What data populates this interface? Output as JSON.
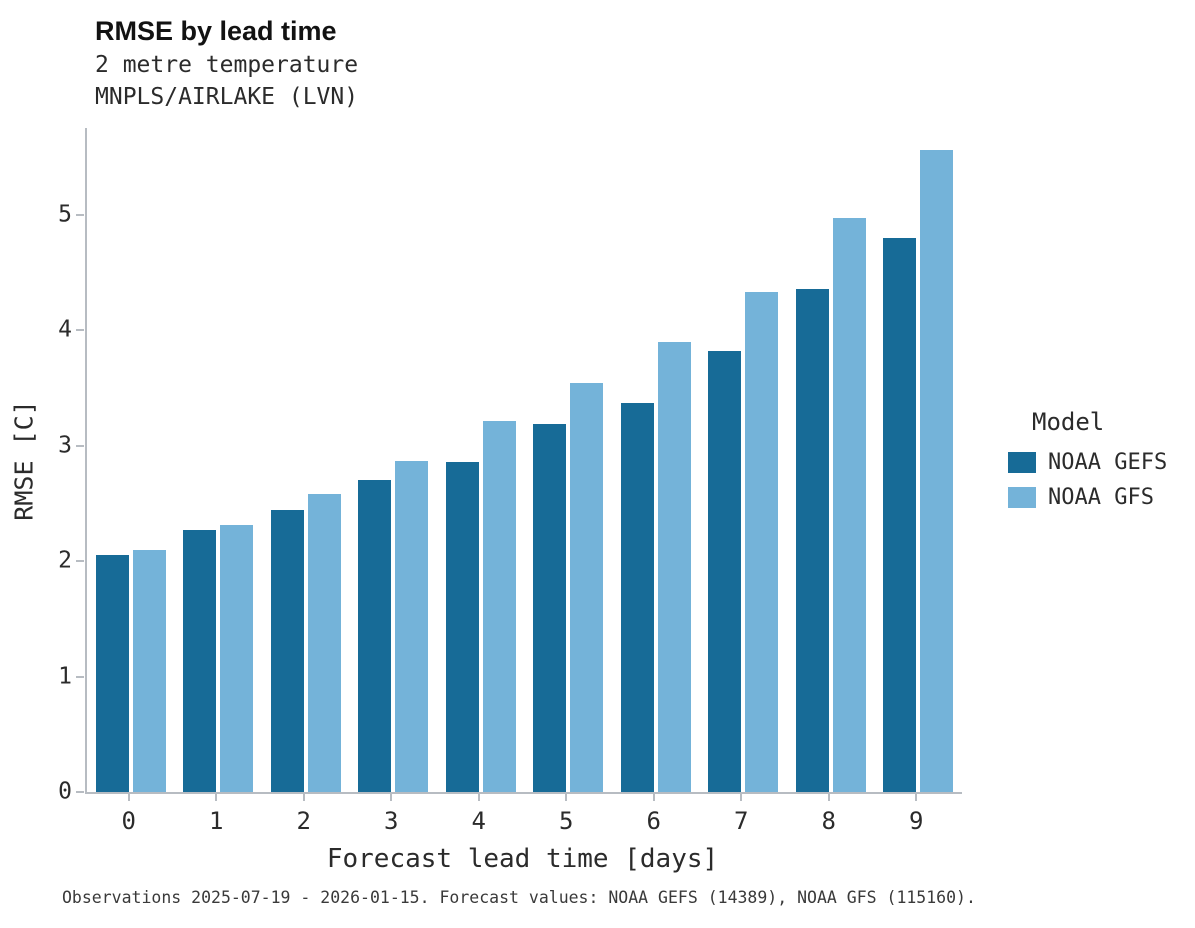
{
  "chart_data": {
    "type": "bar",
    "title": "RMSE by lead time",
    "subtitle1": "2 metre temperature",
    "subtitle2": "MNPLS/AIRLAKE (LVN)",
    "categories": [
      0,
      1,
      2,
      3,
      4,
      5,
      6,
      7,
      8,
      9
    ],
    "series": [
      {
        "name": "NOAA GEFS",
        "color": "#176b97",
        "values": [
          2.05,
          2.27,
          2.44,
          2.7,
          2.86,
          3.19,
          3.37,
          3.82,
          4.36,
          4.8
        ]
      },
      {
        "name": "NOAA GFS",
        "color": "#74b3d9",
        "values": [
          2.1,
          2.31,
          2.58,
          2.87,
          3.21,
          3.54,
          3.9,
          4.33,
          4.97,
          5.56
        ]
      }
    ],
    "xlabel": "Forecast lead time [days]",
    "ylabel": "RMSE [C]",
    "ylim": [
      0,
      5.75
    ],
    "yticks": [
      0,
      1,
      2,
      3,
      4,
      5
    ],
    "grid": false,
    "legend_title": "Model",
    "legend_position": "right",
    "caption": "Observations 2025-07-19 - 2026-01-15. Forecast values: NOAA GEFS (14389), NOAA GFS (115160)."
  }
}
